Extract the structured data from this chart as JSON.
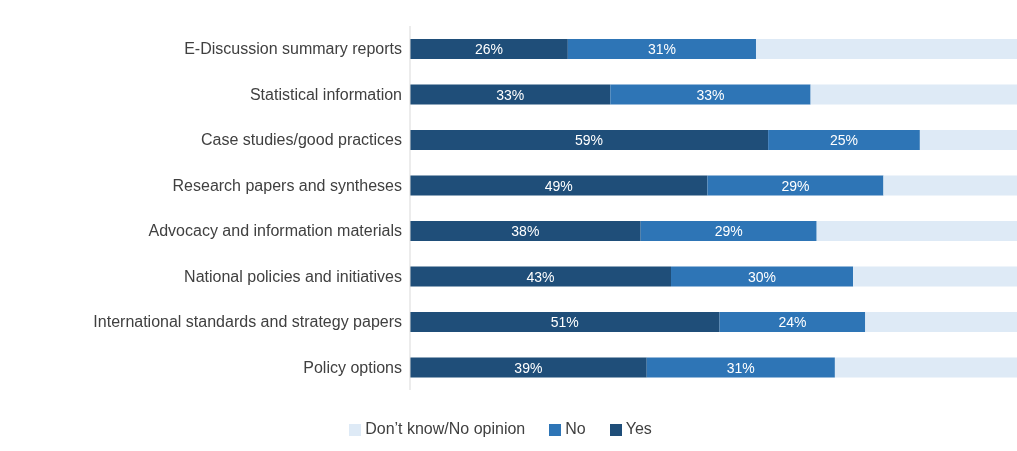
{
  "chart_data": {
    "type": "bar",
    "orientation": "horizontal",
    "stacked": true,
    "categories": [
      "E-Discussion summary reports",
      "Statistical information",
      "Case studies/good practices",
      "Research papers and syntheses",
      "Advocacy and information materials",
      "National policies and initiatives",
      "International standards and strategy papers",
      "Policy options"
    ],
    "series": [
      {
        "name": "Yes",
        "color": "#1f4e79",
        "values": [
          26,
          33,
          59,
          49,
          38,
          43,
          51,
          39
        ],
        "value_labels": [
          "26%",
          "33%",
          "59%",
          "49%",
          "38%",
          "43%",
          "51%",
          "39%"
        ]
      },
      {
        "name": "No",
        "color": "#2e75b6",
        "values": [
          31,
          33,
          25,
          29,
          29,
          30,
          24,
          31
        ],
        "value_labels": [
          "31%",
          "33%",
          "25%",
          "29%",
          "29%",
          "30%",
          "24%",
          "31%"
        ]
      },
      {
        "name": "Don’t know/No opinion",
        "color": "#deeaf6",
        "values": [
          43,
          34,
          16,
          22,
          33,
          27,
          25,
          30
        ]
      }
    ],
    "xlim": [
      0,
      100
    ],
    "tick_labels": "y",
    "legend": "bottom",
    "grid": false
  }
}
